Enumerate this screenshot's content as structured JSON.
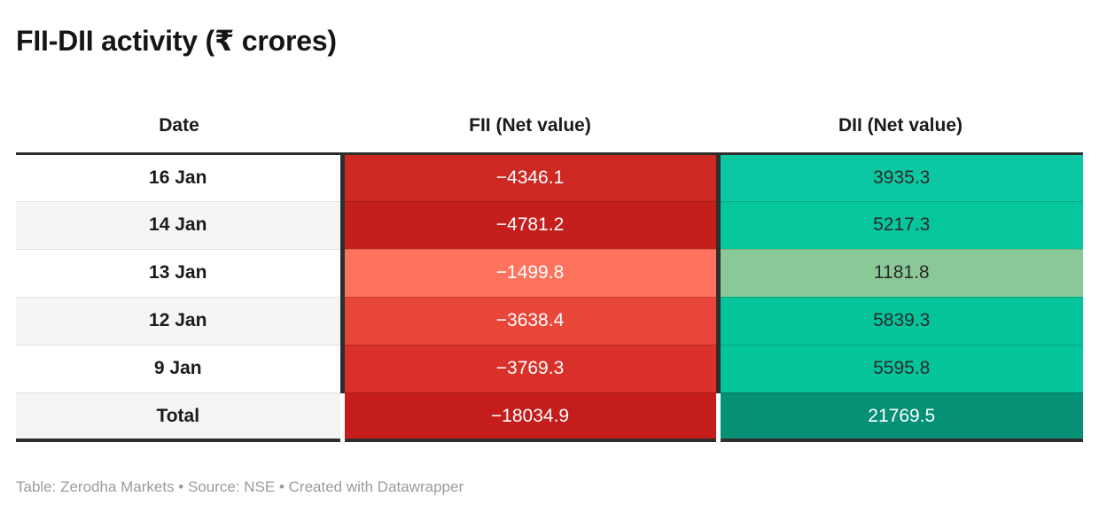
{
  "title": "FII-DII activity (₹ crores)",
  "footer": "Table: Zerodha Markets • Source: NSE • Created with Datawrapper",
  "colors": {
    "border_dark": "#2e2e2e",
    "row_stripe": "#f5f5f5",
    "footer_text": "#9b9b9b"
  },
  "table": {
    "columns": [
      "Date",
      "FII (Net value)",
      "DII (Net value)"
    ],
    "rows": [
      {
        "date": "16 Jan",
        "fii": "−4346.1",
        "fii_bg": "#ce2823",
        "fii_fg": "#ffffff",
        "dii": "3935.3",
        "dii_bg": "#0bc8a2",
        "dii_fg": "#2b2b2b"
      },
      {
        "date": "14 Jan",
        "fii": "−4781.2",
        "fii_bg": "#c41e1d",
        "fii_fg": "#ffffff",
        "dii": "5217.3",
        "dii_bg": "#06c69e",
        "dii_fg": "#2b2b2b"
      },
      {
        "date": "13 Jan",
        "fii": "−1499.8",
        "fii_bg": "#fd735e",
        "fii_fg": "#ffffff",
        "dii": "1181.8",
        "dii_bg": "#8ac897",
        "dii_fg": "#2b2b2b"
      },
      {
        "date": "12 Jan",
        "fii": "−3638.4",
        "fii_bg": "#e9463a",
        "fii_fg": "#ffffff",
        "dii": "5839.3",
        "dii_bg": "#03c49b",
        "dii_fg": "#2b2b2b"
      },
      {
        "date": "9 Jan",
        "fii": "−3769.3",
        "fii_bg": "#d93029",
        "fii_fg": "#ffffff",
        "dii": "5595.8",
        "dii_bg": "#05c59d",
        "dii_fg": "#2b2b2b"
      },
      {
        "date": "Total",
        "fii": "−18034.9",
        "fii_bg": "#c41d1c",
        "fii_fg": "#ffffff",
        "dii": "21769.5",
        "dii_bg": "#069076",
        "dii_fg": "#ffffff"
      }
    ]
  },
  "chart_data": {
    "type": "table",
    "title": "FII-DII activity (₹ crores)",
    "columns": [
      "Date",
      "FII (Net value)",
      "DII (Net value)"
    ],
    "rows": [
      [
        "16 Jan",
        -4346.1,
        3935.3
      ],
      [
        "14 Jan",
        -4781.2,
        5217.3
      ],
      [
        "13 Jan",
        -1499.8,
        1181.8
      ],
      [
        "12 Jan",
        -3638.4,
        5839.3
      ],
      [
        "9 Jan",
        -3769.3,
        5595.8
      ],
      [
        "Total",
        -18034.9,
        21769.5
      ]
    ],
    "heatmap": true,
    "heatmap_note": "negative FII values shaded red (darker = more negative), positive DII values shaded green (darker/sage by magnitude)",
    "source": "NSE",
    "credit": "Zerodha Markets / Datawrapper"
  }
}
